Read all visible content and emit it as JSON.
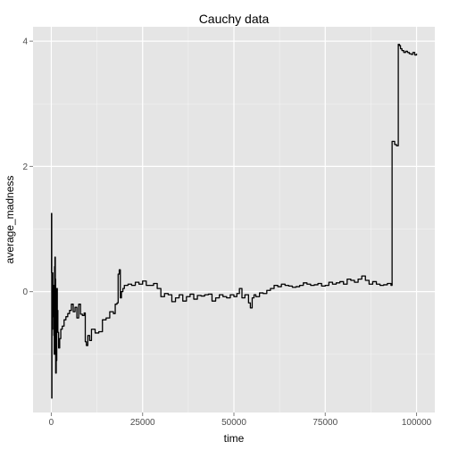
{
  "chart_data": {
    "type": "line",
    "title": "Cauchy data",
    "xlabel": "time",
    "ylabel": "average_madness",
    "xlim": [
      -5000,
      105000
    ],
    "ylim": [
      -1.93,
      4.23
    ],
    "x_ticks": [
      0,
      25000,
      50000,
      75000,
      100000
    ],
    "x_tick_labels": [
      "0",
      "25000",
      "50000",
      "75000",
      "100000"
    ],
    "y_ticks": [
      0,
      2,
      4
    ],
    "y_tick_labels": [
      "0",
      "2",
      "4"
    ],
    "grid": true,
    "colors": {
      "panel": "#e5e5e5",
      "grid": "#ffffff",
      "line": "#000000",
      "tick_text": "#4d4d4d"
    },
    "series": [
      {
        "name": "average_madness",
        "x": [
          0,
          60,
          120,
          180,
          260,
          340,
          420,
          500,
          600,
          700,
          800,
          900,
          1000,
          1100,
          1200,
          1350,
          1500,
          1650,
          1800,
          2000,
          2300,
          2600,
          3000,
          3500,
          4000,
          4500,
          5000,
          5500,
          6000,
          6500,
          7000,
          7500,
          8000,
          8500,
          9000,
          9300,
          9600,
          10000,
          10500,
          11000,
          12000,
          13000,
          14000,
          15000,
          16000,
          17000,
          17500,
          18000,
          18300,
          18600,
          18900,
          19200,
          19600,
          20000,
          21000,
          22000,
          23000,
          24000,
          25000,
          26000,
          27000,
          28000,
          29000,
          30000,
          31000,
          32000,
          33000,
          34000,
          35000,
          36000,
          37000,
          38000,
          39000,
          40000,
          41000,
          42000,
          43000,
          44000,
          45000,
          46000,
          47000,
          48000,
          49000,
          50000,
          50800,
          51500,
          52200,
          53000,
          54000,
          54500,
          55000,
          55500,
          56000,
          57000,
          58000,
          59000,
          60000,
          61000,
          62000,
          63000,
          64000,
          65000,
          66000,
          67000,
          68000,
          69000,
          70000,
          71000,
          72000,
          73000,
          74000,
          75000,
          76000,
          77000,
          78000,
          79000,
          80000,
          81000,
          82000,
          83000,
          84000,
          85000,
          86000,
          87000,
          88000,
          89000,
          90000,
          91000,
          92000,
          93000,
          93300,
          93600,
          94000,
          94500,
          95000,
          95300,
          95600,
          96000,
          96500,
          97000,
          97500,
          98000,
          98500,
          99000,
          99500,
          100000
        ],
        "values": [
          0.3,
          1.25,
          -1.7,
          0.2,
          -0.6,
          0.3,
          -0.4,
          -0.2,
          0.1,
          -0.7,
          -1.0,
          0.4,
          0.55,
          0.2,
          -1.3,
          -1.1,
          0.05,
          -0.3,
          -0.65,
          -0.9,
          -0.75,
          -0.6,
          -0.55,
          -0.45,
          -0.4,
          -0.35,
          -0.3,
          -0.2,
          -0.32,
          -0.25,
          -0.42,
          -0.2,
          -0.36,
          -0.38,
          -0.34,
          -0.8,
          -0.86,
          -0.7,
          -0.78,
          -0.6,
          -0.66,
          -0.64,
          -0.45,
          -0.42,
          -0.32,
          -0.35,
          -0.2,
          -0.18,
          0.28,
          0.35,
          -0.1,
          0.0,
          0.05,
          0.1,
          0.12,
          0.1,
          0.15,
          0.12,
          0.17,
          0.1,
          0.1,
          0.13,
          0.05,
          -0.08,
          -0.03,
          -0.05,
          -0.16,
          -0.1,
          -0.05,
          -0.15,
          -0.08,
          -0.04,
          -0.12,
          -0.06,
          -0.07,
          -0.05,
          -0.04,
          -0.15,
          -0.1,
          -0.05,
          -0.08,
          -0.1,
          -0.05,
          -0.08,
          -0.03,
          0.05,
          -0.1,
          -0.05,
          -0.18,
          -0.26,
          -0.1,
          -0.05,
          -0.08,
          -0.02,
          -0.03,
          0.02,
          0.05,
          0.1,
          0.08,
          0.12,
          0.1,
          0.09,
          0.07,
          0.08,
          0.1,
          0.14,
          0.12,
          0.1,
          0.11,
          0.13,
          0.09,
          0.1,
          0.15,
          0.12,
          0.14,
          0.16,
          0.12,
          0.2,
          0.18,
          0.15,
          0.2,
          0.25,
          0.18,
          0.12,
          0.16,
          0.12,
          0.1,
          0.11,
          0.13,
          0.1,
          2.4,
          2.4,
          2.35,
          2.33,
          3.95,
          3.93,
          3.88,
          3.85,
          3.82,
          3.84,
          3.82,
          3.8,
          3.79,
          3.82,
          3.78,
          3.8
        ]
      }
    ]
  }
}
